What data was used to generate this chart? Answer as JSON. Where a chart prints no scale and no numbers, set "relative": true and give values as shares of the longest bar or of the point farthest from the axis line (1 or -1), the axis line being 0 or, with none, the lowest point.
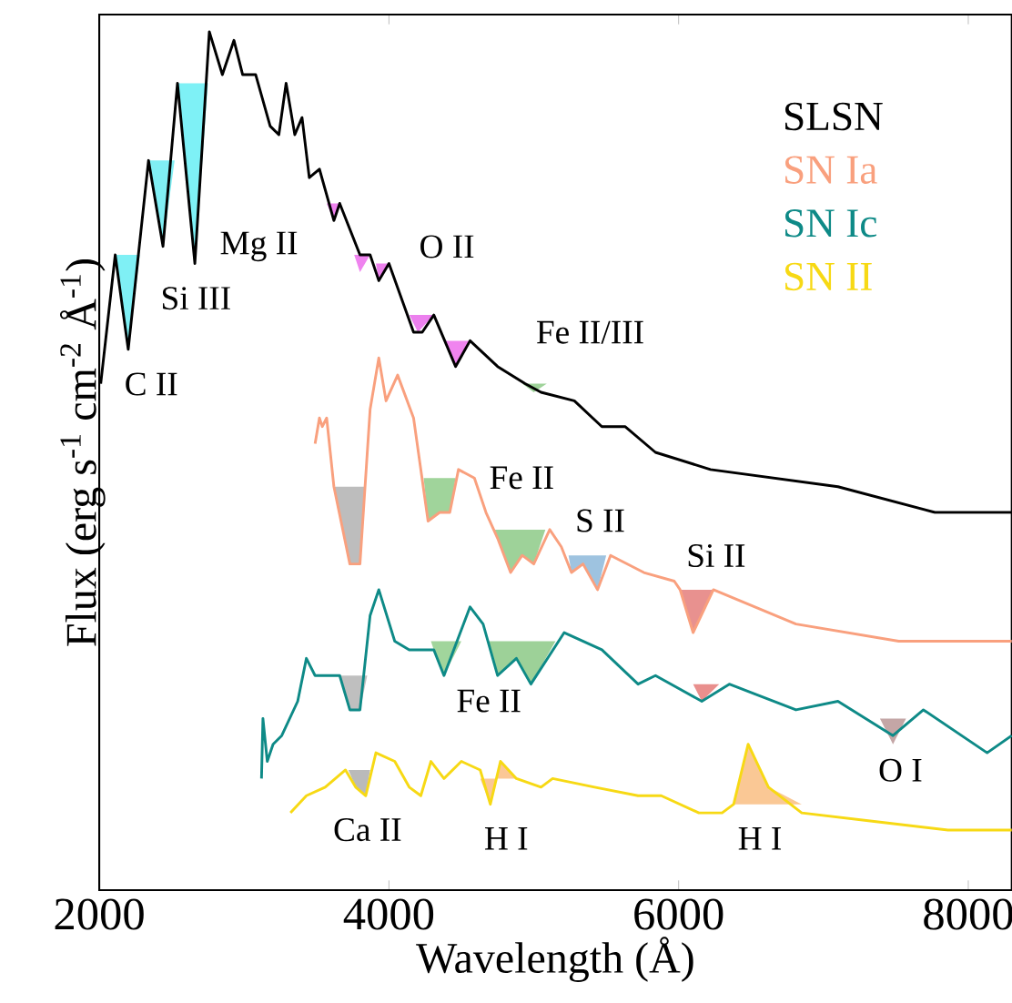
{
  "chart_data": {
    "type": "line",
    "relative": true,
    "xlabel": "Wavelength (Å)",
    "ylabel": "Flux (erg s$^{-1}$ cm$^{-2}$ Å$^{-1}$)",
    "xlim": [
      2000,
      8300
    ],
    "xticks": [
      2000,
      4000,
      6000,
      8000
    ],
    "tick_labels": "x",
    "grid": false,
    "legend": "top right",
    "marker": "none",
    "line_style": "solid",
    "series": [
      {
        "type": "area",
        "color": "#7ff0f5",
        "x": [
          2110,
          2200,
          2280
        ],
        "values": [
          0.74,
          0.63,
          0.74
        ]
      },
      {
        "type": "area",
        "color": "#80eff4",
        "x": [
          2340,
          2440,
          2520
        ],
        "values": [
          0.85,
          0.75,
          0.85
        ]
      },
      {
        "type": "area",
        "color": "#7ef1f6",
        "x": [
          2540,
          2660,
          2750
        ],
        "values": [
          0.94,
          0.73,
          0.94
        ]
      },
      {
        "type": "area",
        "color": "#ee82ee",
        "x": [
          3570,
          3620,
          3660
        ],
        "values": [
          0.8,
          0.78,
          0.8
        ]
      },
      {
        "type": "area",
        "color": "#ef83ef",
        "x": [
          3760,
          3800,
          3870
        ],
        "values": [
          0.74,
          0.72,
          0.74
        ]
      },
      {
        "type": "area",
        "color": "#ed81ed",
        "x": [
          3910,
          3930,
          4000
        ],
        "values": [
          0.73,
          0.71,
          0.73
        ]
      },
      {
        "type": "area",
        "color": "#ec80ee",
        "x": [
          4140,
          4200,
          4310
        ],
        "values": [
          0.67,
          0.65,
          0.67
        ]
      },
      {
        "type": "area",
        "color": "#f084ef",
        "x": [
          4380,
          4460,
          4560
        ],
        "values": [
          0.64,
          0.61,
          0.64
        ]
      },
      {
        "type": "area",
        "color": "#9fd39a",
        "x": [
          4920,
          5000,
          5090
        ],
        "values": [
          0.59,
          0.58,
          0.59
        ]
      },
      {
        "type": "area",
        "color": "#bdbdbd",
        "x": [
          3620,
          3730,
          3800,
          3840
        ],
        "values": [
          0.47,
          0.38,
          0.38,
          0.47
        ]
      },
      {
        "type": "area",
        "color": "#a0d49b",
        "x": [
          4240,
          4270,
          4350,
          4420,
          4460
        ],
        "values": [
          0.48,
          0.43,
          0.44,
          0.44,
          0.48
        ]
      },
      {
        "type": "area",
        "color": "#9ed299",
        "x": [
          4730,
          4840,
          4920,
          5000,
          5080
        ],
        "values": [
          0.42,
          0.37,
          0.39,
          0.38,
          0.42
        ]
      },
      {
        "type": "area",
        "color": "#9ec3e0",
        "x": [
          5240,
          5260,
          5340,
          5440,
          5500
        ],
        "values": [
          0.39,
          0.37,
          0.38,
          0.35,
          0.39
        ]
      },
      {
        "type": "area",
        "color": "#e8918f",
        "x": [
          6010,
          6100,
          6240
        ],
        "values": [
          0.35,
          0.3,
          0.35
        ]
      },
      {
        "type": "area",
        "color": "#bfbfbf",
        "x": [
          3660,
          3730,
          3800,
          3850
        ],
        "values": [
          0.25,
          0.21,
          0.21,
          0.25
        ]
      },
      {
        "type": "area",
        "color": "#a1d59c",
        "x": [
          4290,
          4310,
          4380,
          4500
        ],
        "values": [
          0.29,
          0.28,
          0.25,
          0.29
        ]
      },
      {
        "type": "area",
        "color": "#9dd198",
        "x": [
          4690,
          4750,
          4880,
          4980,
          5150
        ],
        "values": [
          0.29,
          0.25,
          0.27,
          0.24,
          0.29
        ]
      },
      {
        "type": "area",
        "color": "#e98f8d",
        "x": [
          6100,
          6160,
          6280
        ],
        "values": [
          0.24,
          0.22,
          0.24
        ]
      },
      {
        "type": "area",
        "color": "#c4a6a6",
        "x": [
          7390,
          7480,
          7570
        ],
        "values": [
          0.2,
          0.17,
          0.2
        ]
      },
      {
        "type": "area",
        "color": "#bababa",
        "x": [
          3720,
          3770,
          3840,
          3870
        ],
        "values": [
          0.14,
          0.12,
          0.11,
          0.14
        ]
      },
      {
        "type": "area",
        "color": "#fbc796",
        "x": [
          4630,
          4700,
          4740,
          4770,
          4880
        ],
        "values": [
          0.13,
          0.1,
          0.13,
          0.15,
          0.13
        ]
      },
      {
        "type": "area",
        "color": "#fac895",
        "x": [
          6380,
          6480,
          6620,
          6850
        ],
        "values": [
          0.1,
          0.17,
          0.12,
          0.1
        ]
      },
      {
        "name": "SLSN",
        "color": "#000000",
        "x": [
          2010,
          2110,
          2200,
          2340,
          2440,
          2540,
          2660,
          2760,
          2850,
          2930,
          2990,
          3080,
          3180,
          3240,
          3290,
          3350,
          3400,
          3450,
          3520,
          3620,
          3660,
          3800,
          3870,
          3930,
          4000,
          4170,
          4230,
          4310,
          4460,
          4560,
          4750,
          4940,
          5050,
          5280,
          5470,
          5630,
          5840,
          6220,
          7100,
          7770,
          8110,
          8230,
          8300
        ],
        "values": [
          0.59,
          0.74,
          0.63,
          0.85,
          0.75,
          0.94,
          0.73,
          1.0,
          0.95,
          0.99,
          0.95,
          0.95,
          0.89,
          0.88,
          0.94,
          0.88,
          0.9,
          0.83,
          0.84,
          0.78,
          0.8,
          0.74,
          0.74,
          0.71,
          0.73,
          0.65,
          0.65,
          0.67,
          0.61,
          0.64,
          0.61,
          0.59,
          0.58,
          0.57,
          0.54,
          0.54,
          0.51,
          0.49,
          0.47,
          0.44,
          0.44,
          0.44,
          0.44
        ]
      },
      {
        "name": "SN Ia",
        "color": "#f9a07e",
        "x": [
          3490,
          3520,
          3540,
          3570,
          3620,
          3730,
          3800,
          3870,
          3930,
          3980,
          4060,
          4170,
          4270,
          4350,
          4420,
          4480,
          4590,
          4670,
          4750,
          4840,
          4920,
          5000,
          5110,
          5190,
          5260,
          5340,
          5440,
          5530,
          5760,
          5970,
          6010,
          6100,
          6240,
          6810,
          7520,
          8190,
          8300
        ],
        "values": [
          0.52,
          0.55,
          0.54,
          0.55,
          0.47,
          0.38,
          0.38,
          0.56,
          0.62,
          0.57,
          0.6,
          0.55,
          0.43,
          0.44,
          0.44,
          0.49,
          0.48,
          0.44,
          0.41,
          0.37,
          0.39,
          0.38,
          0.42,
          0.4,
          0.37,
          0.38,
          0.35,
          0.39,
          0.37,
          0.36,
          0.35,
          0.3,
          0.35,
          0.31,
          0.29,
          0.29,
          0.29
        ]
      },
      {
        "name": "SN Ic",
        "color": "#0e8a87",
        "x": [
          3120,
          3130,
          3160,
          3200,
          3260,
          3370,
          3430,
          3490,
          3600,
          3660,
          3730,
          3800,
          3870,
          3930,
          4040,
          4140,
          4310,
          4380,
          4560,
          4650,
          4750,
          4880,
          4980,
          5210,
          5470,
          5720,
          5840,
          6160,
          6350,
          6810,
          7100,
          7480,
          7690,
          8130,
          8300
        ],
        "values": [
          0.13,
          0.2,
          0.15,
          0.17,
          0.18,
          0.22,
          0.27,
          0.25,
          0.25,
          0.25,
          0.21,
          0.21,
          0.32,
          0.35,
          0.29,
          0.28,
          0.28,
          0.25,
          0.33,
          0.31,
          0.25,
          0.27,
          0.24,
          0.3,
          0.28,
          0.24,
          0.25,
          0.22,
          0.24,
          0.21,
          0.22,
          0.18,
          0.21,
          0.16,
          0.18
        ]
      },
      {
        "name": "SN II",
        "color": "#f7d914",
        "x": [
          3320,
          3430,
          3560,
          3700,
          3770,
          3840,
          3910,
          4040,
          4140,
          4220,
          4290,
          4380,
          4500,
          4630,
          4700,
          4770,
          4880,
          5050,
          5130,
          5420,
          5720,
          5880,
          6140,
          6300,
          6380,
          6480,
          6620,
          6850,
          7350,
          7860,
          8300
        ],
        "values": [
          0.09,
          0.11,
          0.12,
          0.14,
          0.12,
          0.11,
          0.16,
          0.15,
          0.12,
          0.11,
          0.15,
          0.13,
          0.15,
          0.14,
          0.1,
          0.15,
          0.13,
          0.12,
          0.13,
          0.12,
          0.11,
          0.11,
          0.09,
          0.09,
          0.1,
          0.17,
          0.12,
          0.09,
          0.08,
          0.07,
          0.07
        ]
      }
    ],
    "annotations": [
      "C II",
      "Si III",
      "Mg II",
      "O II",
      "Fe II/III",
      "Fe II",
      "S II",
      "Si II",
      "Fe II",
      "O I",
      "Ca II",
      "H I",
      "H I"
    ]
  }
}
